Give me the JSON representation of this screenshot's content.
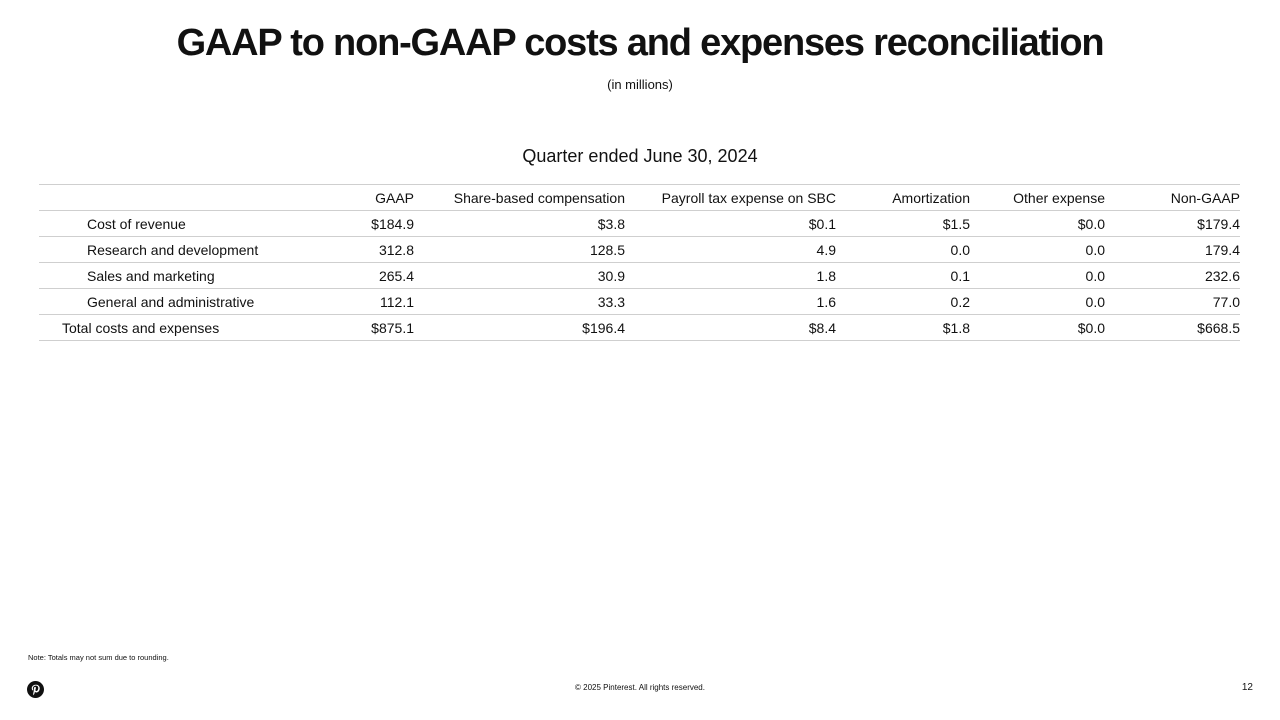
{
  "slide": {
    "title": "GAAP to non-GAAP costs and expenses reconciliation",
    "subtitle": "(in millions)",
    "period": "Quarter ended June 30, 2024"
  },
  "table": {
    "headers": [
      "",
      "GAAP",
      "Share-based compensation",
      "Payroll tax expense on SBC",
      "Amortization",
      "Other expense",
      "Non-GAAP"
    ],
    "rows": [
      {
        "label": "Cost of revenue",
        "gaap": "$184.9",
        "sbc": "$3.8",
        "payroll": "$0.1",
        "amort": "$1.5",
        "other": "$0.0",
        "nongaap": "$179.4"
      },
      {
        "label": "Research and development",
        "gaap": "312.8",
        "sbc": "128.5",
        "payroll": "4.9",
        "amort": "0.0",
        "other": "0.0",
        "nongaap": "179.4"
      },
      {
        "label": "Sales and marketing",
        "gaap": "265.4",
        "sbc": "30.9",
        "payroll": "1.8",
        "amort": "0.1",
        "other": "0.0",
        "nongaap": "232.6"
      },
      {
        "label": "General and administrative",
        "gaap": "112.1",
        "sbc": "33.3",
        "payroll": "1.6",
        "amort": "0.2",
        "other": "0.0",
        "nongaap": "77.0"
      },
      {
        "label": "Total costs and expenses",
        "gaap": "$875.1",
        "sbc": "$196.4",
        "payroll": "$8.4",
        "amort": "$1.8",
        "other": "$0.0",
        "nongaap": "$668.5"
      }
    ]
  },
  "footer": {
    "note": "Note: Totals may not sum due to rounding.",
    "copyright": "© 2025 Pinterest. All rights reserved.",
    "page_number": "12",
    "logo_icon": "pinterest-logo-icon"
  }
}
